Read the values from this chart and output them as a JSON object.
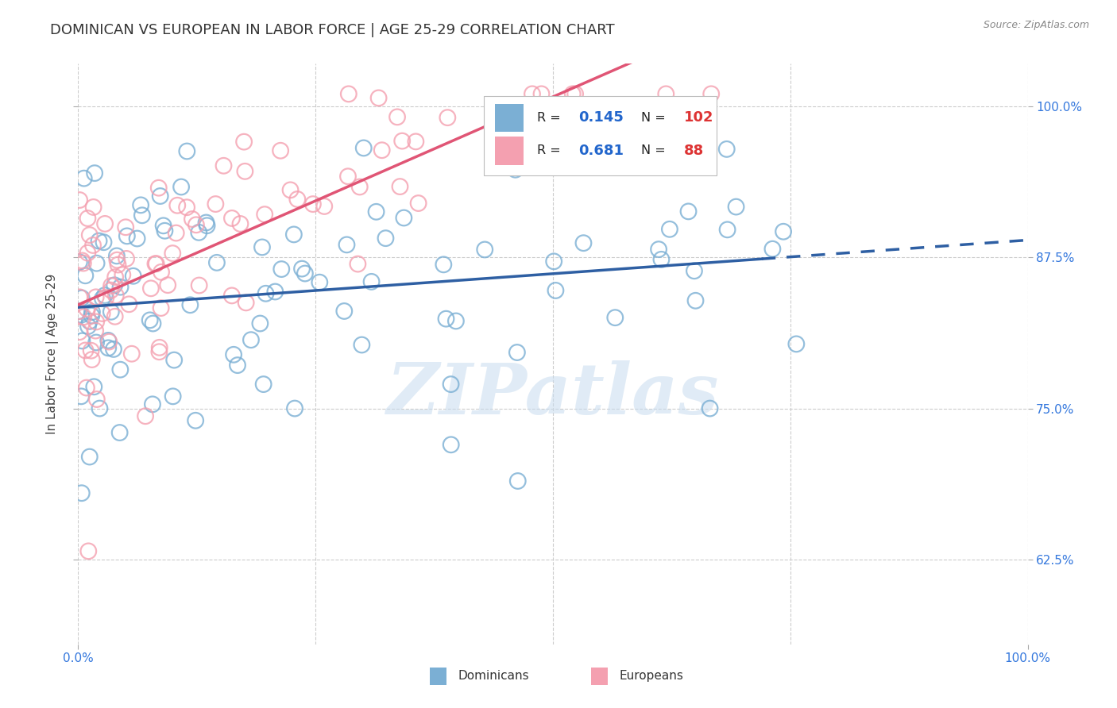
{
  "title": "DOMINICAN VS EUROPEAN IN LABOR FORCE | AGE 25-29 CORRELATION CHART",
  "source": "Source: ZipAtlas.com",
  "ylabel": "In Labor Force | Age 25-29",
  "xlim": [
    0.0,
    1.0
  ],
  "ylim": [
    0.555,
    1.035
  ],
  "yticks": [
    0.625,
    0.75,
    0.875,
    1.0
  ],
  "ytick_labels": [
    "62.5%",
    "75.0%",
    "87.5%",
    "100.0%"
  ],
  "xtick_labels": [
    "0.0%",
    "100.0%"
  ],
  "xtick_positions": [
    0.0,
    1.0
  ],
  "blue_color": "#7BAFD4",
  "pink_color": "#F4A0B0",
  "blue_line_color": "#2E5FA3",
  "pink_line_color": "#E05575",
  "blue_R": 0.145,
  "blue_N": 102,
  "pink_R": 0.681,
  "pink_N": 88,
  "watermark": "ZIPatlas",
  "background_color": "#FFFFFF",
  "legend_label_blue": "Dominicans",
  "legend_label_pink": "Europeans",
  "title_fontsize": 13,
  "axis_label_fontsize": 11,
  "tick_fontsize": 11,
  "tick_color": "#3377DD",
  "grid_color": "#CCCCCC",
  "title_color": "#333333",
  "source_color": "#888888"
}
